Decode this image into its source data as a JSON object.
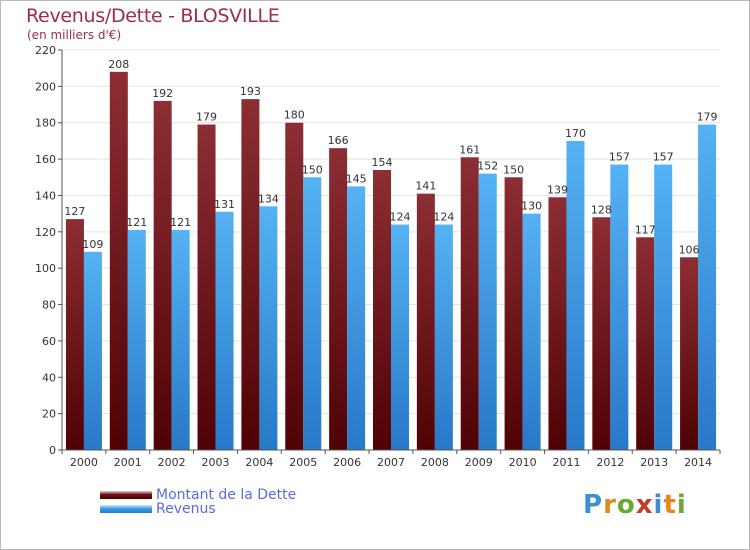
{
  "header": {
    "title": "Revenus/Dette - BLOSVILLE",
    "subtitle": "(en milliers d'€)"
  },
  "legend": [
    {
      "label": "Montant de la Dette",
      "color": "#6b0d12"
    },
    {
      "label": "Revenus",
      "color": "#3e9ee6"
    }
  ],
  "logo": {
    "text": "Proxiti",
    "colors": [
      "#3d8fd1",
      "#e08a1e",
      "#6aa832",
      "#c53b2a",
      "#3d8fd1",
      "#e08a1e",
      "#6aa832"
    ]
  },
  "chart_data": {
    "type": "bar",
    "title": "Revenus/Dette - BLOSVILLE",
    "subtitle": "(en milliers d'€)",
    "xlabel": "",
    "ylabel": "",
    "ylim": [
      0,
      220
    ],
    "yticks": [
      0,
      20,
      40,
      60,
      80,
      100,
      120,
      140,
      160,
      180,
      200,
      220
    ],
    "grid": true,
    "legend_position": "bottom-left",
    "categories": [
      "2000",
      "2001",
      "2002",
      "2003",
      "2004",
      "2005",
      "2006",
      "2007",
      "2008",
      "2009",
      "2010",
      "2011",
      "2012",
      "2013",
      "2014"
    ],
    "series": [
      {
        "name": "Montant de la Dette",
        "color": "#6b0d12",
        "values": [
          127,
          208,
          192,
          179,
          193,
          180,
          166,
          154,
          141,
          161,
          150,
          139,
          128,
          117,
          106
        ]
      },
      {
        "name": "Revenus",
        "color": "#3e9ee6",
        "values": [
          109,
          121,
          121,
          131,
          134,
          150,
          145,
          124,
          124,
          152,
          130,
          170,
          157,
          157,
          179
        ]
      }
    ]
  }
}
